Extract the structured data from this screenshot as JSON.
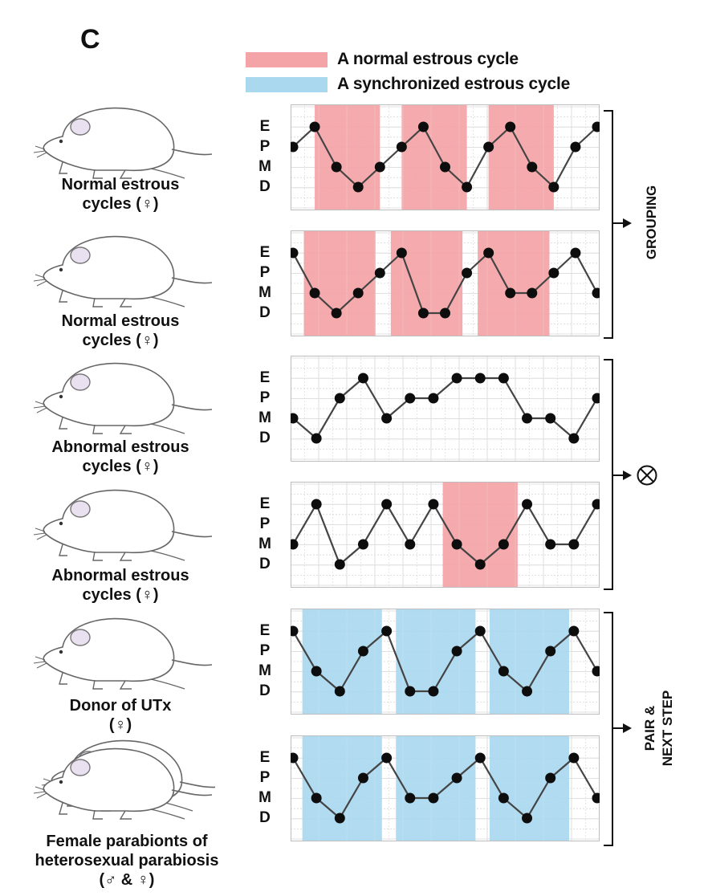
{
  "panel_letter": "C",
  "legend": [
    {
      "label": "A normal estrous cycle",
      "color": "#f4a3a6"
    },
    {
      "label": "A synchronized estrous cycle",
      "color": "#a9d8ef"
    }
  ],
  "stages": [
    "E",
    "P",
    "M",
    "D"
  ],
  "groups": [
    {
      "label": "GROUPING",
      "result_icon": "arrow-icon"
    },
    {
      "label": "",
      "result_icon": "circled-times-icon"
    },
    {
      "label_lines": [
        "PAIR &",
        "NEXT STEP"
      ],
      "result_icon": "arrow-icon"
    }
  ],
  "chart_data": [
    {
      "type": "line",
      "subject_lines": [
        "Normal estrous",
        "cycles (♀)"
      ],
      "y_categories": [
        "E",
        "P",
        "M",
        "D"
      ],
      "values": [
        "P",
        "E",
        "M",
        "D",
        "M",
        "P",
        "E",
        "M",
        "D",
        "P",
        "E",
        "M",
        "D",
        "P",
        "E"
      ],
      "shaded_ranges": [
        {
          "from": 1,
          "to": 4,
          "kind": "normal"
        },
        {
          "from": 5,
          "to": 8,
          "kind": "normal"
        },
        {
          "from": 9,
          "to": 12,
          "kind": "normal"
        }
      ]
    },
    {
      "type": "line",
      "subject_lines": [
        "Normal estrous",
        "cycles (♀)"
      ],
      "y_categories": [
        "E",
        "P",
        "M",
        "D"
      ],
      "values": [
        "E",
        "M",
        "D",
        "M",
        "P",
        "E",
        "D",
        "D",
        "P",
        "E",
        "M",
        "M",
        "P",
        "E",
        "M"
      ],
      "shaded_ranges": [
        {
          "from": 0.5,
          "to": 3.8,
          "kind": "normal"
        },
        {
          "from": 4.5,
          "to": 7.8,
          "kind": "normal"
        },
        {
          "from": 8.5,
          "to": 11.8,
          "kind": "normal"
        }
      ]
    },
    {
      "type": "line",
      "subject_lines": [
        "Abnormal estrous",
        "cycles (♀)"
      ],
      "y_categories": [
        "E",
        "P",
        "M",
        "D"
      ],
      "values": [
        "M",
        "D",
        "P",
        "E",
        "M",
        "P",
        "P",
        "E",
        "E",
        "E",
        "M",
        "M",
        "D",
        "P"
      ],
      "shaded_ranges": []
    },
    {
      "type": "line",
      "subject_lines": [
        "Abnormal estrous",
        "cycles (♀)"
      ],
      "y_categories": [
        "E",
        "P",
        "M",
        "D"
      ],
      "values": [
        "M",
        "E",
        "D",
        "M",
        "E",
        "M",
        "E",
        "M",
        "D",
        "M",
        "E",
        "M",
        "M",
        "E"
      ],
      "shaded_ranges": [
        {
          "from": 6.4,
          "to": 9.6,
          "kind": "normal"
        }
      ]
    },
    {
      "type": "line",
      "subject_lines": [
        "Donor of UTx",
        "(♀)"
      ],
      "y_categories": [
        "E",
        "P",
        "M",
        "D"
      ],
      "values": [
        "E",
        "M",
        "D",
        "P",
        "E",
        "D",
        "D",
        "P",
        "E",
        "M",
        "D",
        "P",
        "E",
        "M"
      ],
      "shaded_ranges": [
        {
          "from": 0.4,
          "to": 3.8,
          "kind": "synchronized"
        },
        {
          "from": 4.4,
          "to": 7.8,
          "kind": "synchronized"
        },
        {
          "from": 8.4,
          "to": 11.8,
          "kind": "synchronized"
        }
      ]
    },
    {
      "type": "line",
      "subject_lines": [
        "Female parabionts of",
        "heterosexual parabiosis",
        "(♂ & ♀)"
      ],
      "y_categories": [
        "E",
        "P",
        "M",
        "D"
      ],
      "values": [
        "E",
        "M",
        "D",
        "P",
        "E",
        "M",
        "M",
        "P",
        "E",
        "M",
        "D",
        "P",
        "E",
        "M"
      ],
      "shaded_ranges": [
        {
          "from": 0.4,
          "to": 3.8,
          "kind": "synchronized"
        },
        {
          "from": 4.4,
          "to": 7.8,
          "kind": "synchronized"
        },
        {
          "from": 8.4,
          "to": 11.8,
          "kind": "synchronized"
        }
      ]
    }
  ]
}
